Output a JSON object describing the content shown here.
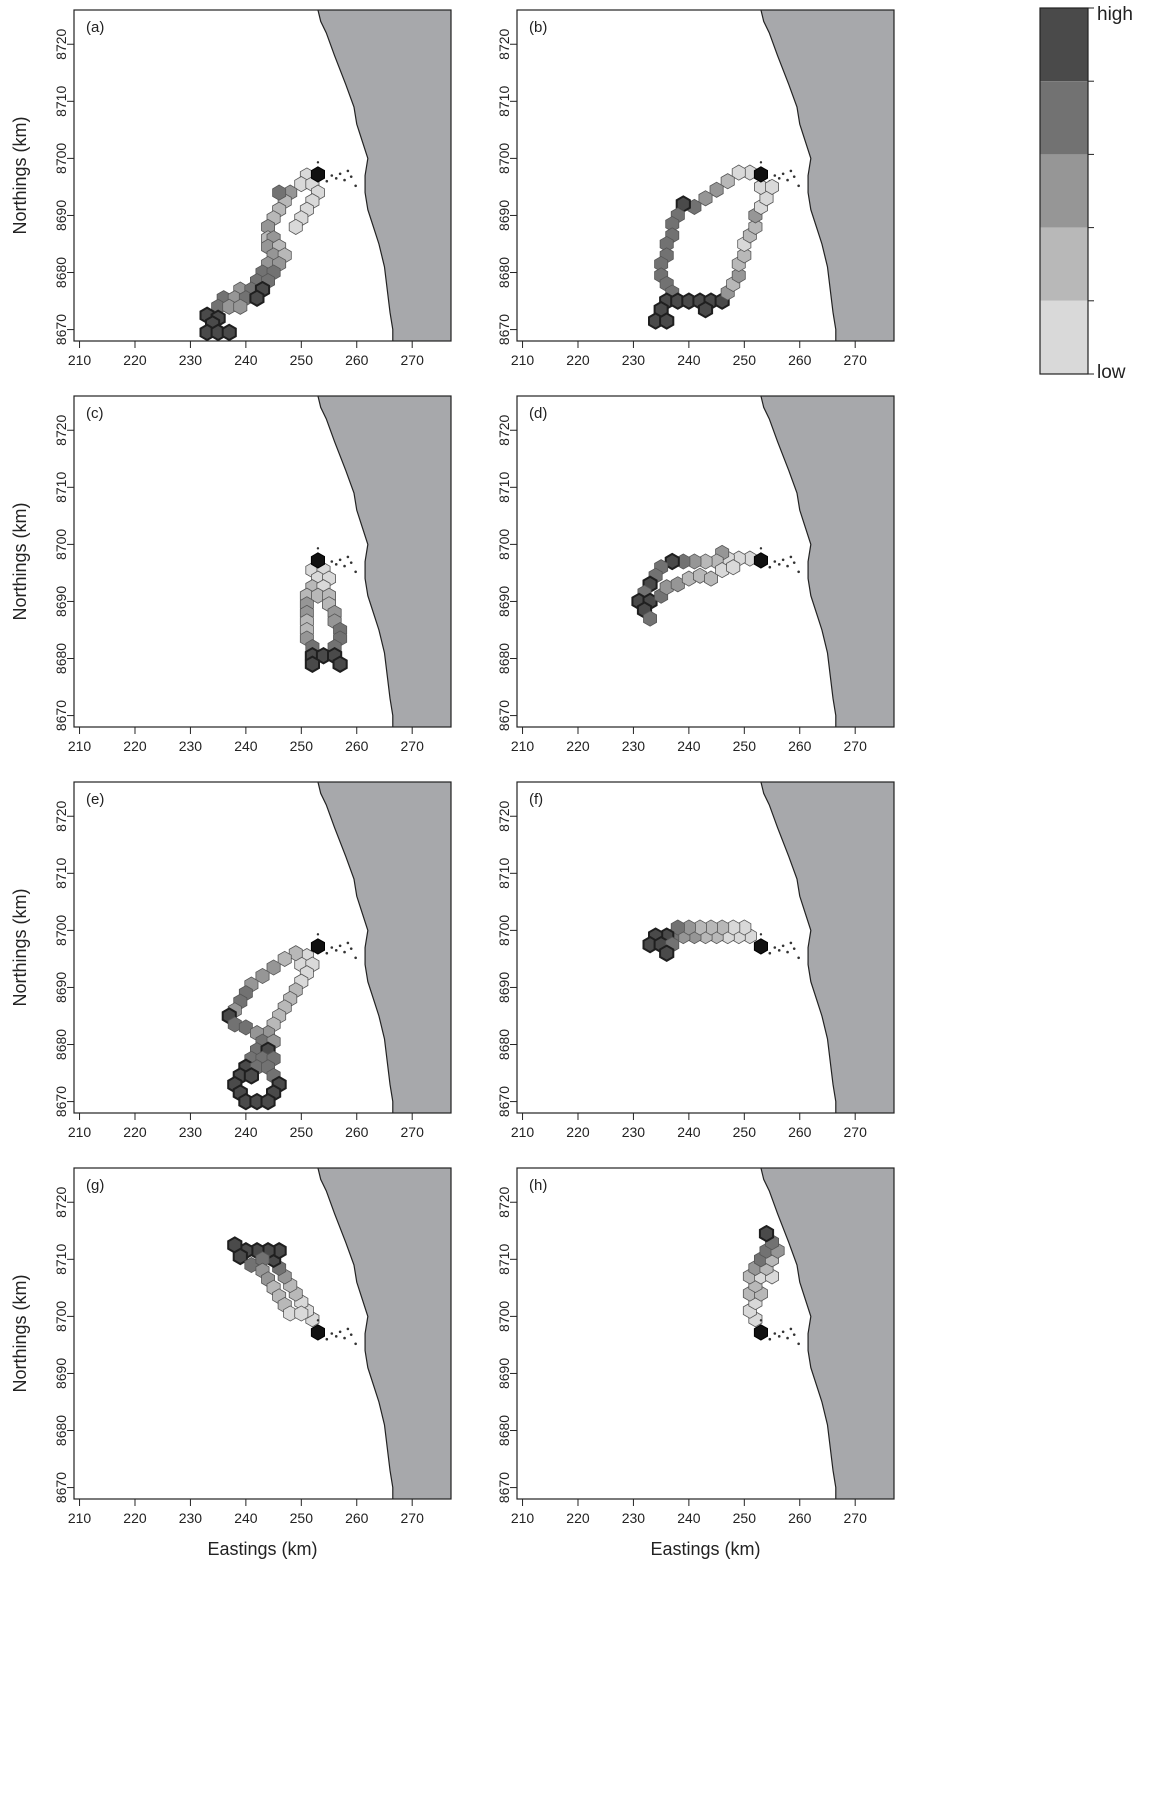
{
  "figure": {
    "xlabel": "Eastings (km)",
    "ylabel": "Northings (km)",
    "xticks": [
      210,
      220,
      230,
      240,
      250,
      260,
      270
    ],
    "yticks": [
      8670,
      8680,
      8690,
      8700,
      8710,
      8720
    ],
    "xlim": [
      209,
      277
    ],
    "ylim": [
      8668,
      8726
    ],
    "land_color": "#a7a8ab",
    "sea_color": "#ffffff",
    "coastline": [
      [
        253,
        8726
      ],
      [
        253.5,
        8724
      ],
      [
        254.5,
        8722
      ],
      [
        256,
        8718
      ],
      [
        258,
        8713
      ],
      [
        259.5,
        8709
      ],
      [
        260,
        8706
      ],
      [
        261,
        8703
      ],
      [
        262,
        8700
      ],
      [
        261.5,
        8697
      ],
      [
        261.5,
        8694
      ],
      [
        262,
        8691
      ],
      [
        263,
        8688
      ],
      [
        264,
        8685
      ],
      [
        265,
        8681
      ],
      [
        265.5,
        8677
      ],
      [
        266,
        8673
      ],
      [
        266.5,
        8670
      ],
      [
        266.5,
        8668
      ]
    ],
    "islands": [
      [
        255.5,
        8697
      ],
      [
        256.3,
        8696.5
      ],
      [
        257,
        8697.3
      ],
      [
        257.8,
        8696.2
      ],
      [
        258.4,
        8697.8
      ],
      [
        259,
        8696.8
      ],
      [
        254.6,
        8696
      ],
      [
        259.8,
        8695.2
      ]
    ]
  },
  "legend": {
    "high_label": "high",
    "low_label": "low",
    "levels": [
      "#d9d9d9",
      "#b8b8b8",
      "#969696",
      "#727272",
      "#4a4a4a"
    ]
  },
  "chart_data": [
    {
      "panel": "(a)",
      "type": "scatter",
      "xlabel": "",
      "ylabel": "Northings (km)",
      "xlim": [
        209,
        277
      ],
      "ylim": [
        8668,
        8726
      ],
      "grid": false,
      "start": [
        253,
        8697.2
      ],
      "cells": [
        [
          251,
          8697,
          0
        ],
        [
          250,
          8695.5,
          0
        ],
        [
          252,
          8695.5,
          0
        ],
        [
          253,
          8694,
          0
        ],
        [
          252,
          8692.5,
          0
        ],
        [
          251,
          8691,
          0
        ],
        [
          250,
          8689.5,
          0
        ],
        [
          249,
          8688,
          0
        ],
        [
          248,
          8694,
          2
        ],
        [
          247,
          8692.5,
          1
        ],
        [
          246,
          8691,
          1
        ],
        [
          246,
          8694,
          3
        ],
        [
          245,
          8689.5,
          1
        ],
        [
          244,
          8688,
          2
        ],
        [
          244,
          8686,
          1
        ],
        [
          245,
          8686,
          2
        ],
        [
          244,
          8684.5,
          2
        ],
        [
          246,
          8684.5,
          1
        ],
        [
          245,
          8683,
          2
        ],
        [
          247,
          8683,
          1
        ],
        [
          244,
          8681.5,
          2
        ],
        [
          246,
          8681.5,
          2
        ],
        [
          243,
          8680,
          3
        ],
        [
          245,
          8680,
          3
        ],
        [
          242,
          8678.5,
          3
        ],
        [
          244,
          8678.5,
          3
        ],
        [
          239,
          8677,
          2
        ],
        [
          241,
          8677,
          3
        ],
        [
          243,
          8677,
          4
        ],
        [
          236,
          8675.5,
          3
        ],
        [
          238,
          8675.5,
          2
        ],
        [
          240,
          8675.5,
          3
        ],
        [
          242,
          8675.5,
          4
        ],
        [
          235,
          8674,
          3
        ],
        [
          237,
          8674,
          2
        ],
        [
          239,
          8674,
          2
        ],
        [
          233,
          8672.5,
          4
        ],
        [
          235,
          8672,
          4
        ],
        [
          234,
          8671,
          4
        ],
        [
          233,
          8669.5,
          4
        ],
        [
          235,
          8669.5,
          4
        ],
        [
          237,
          8669.5,
          4
        ]
      ]
    },
    {
      "panel": "(b)",
      "type": "scatter",
      "xlabel": "",
      "ylabel": "",
      "xlim": [
        209,
        277
      ],
      "ylim": [
        8668,
        8726
      ],
      "grid": false,
      "start": [
        253,
        8697.2
      ],
      "cells": [
        [
          251,
          8697.5,
          0
        ],
        [
          249,
          8697.5,
          0
        ],
        [
          247,
          8696,
          1
        ],
        [
          245,
          8694.5,
          2
        ],
        [
          243,
          8693,
          2
        ],
        [
          241,
          8691.5,
          3
        ],
        [
          239,
          8692,
          4
        ],
        [
          238,
          8690,
          3
        ],
        [
          237,
          8688.5,
          3
        ],
        [
          237,
          8686.5,
          3
        ],
        [
          236,
          8685,
          3
        ],
        [
          236,
          8683,
          3
        ],
        [
          235,
          8681.5,
          3
        ],
        [
          235,
          8679.5,
          3
        ],
        [
          236,
          8678,
          3
        ],
        [
          237,
          8676.5,
          3
        ],
        [
          236,
          8675,
          4
        ],
        [
          235,
          8673.5,
          4
        ],
        [
          234,
          8671.5,
          4
        ],
        [
          236,
          8671.5,
          4
        ],
        [
          238,
          8675,
          4
        ],
        [
          240,
          8675,
          4
        ],
        [
          242,
          8675,
          4
        ],
        [
          244,
          8675,
          4
        ],
        [
          243,
          8673.5,
          4
        ],
        [
          246,
          8675,
          4
        ],
        [
          247,
          8676.5,
          2
        ],
        [
          248,
          8678,
          1
        ],
        [
          249,
          8679.5,
          2
        ],
        [
          249,
          8681.5,
          1
        ],
        [
          250,
          8683,
          1
        ],
        [
          250,
          8685,
          0
        ],
        [
          251,
          8686.5,
          1
        ],
        [
          252,
          8688,
          1
        ],
        [
          252,
          8690,
          2
        ],
        [
          253,
          8691.5,
          0
        ],
        [
          254,
          8693,
          0
        ],
        [
          253,
          8695,
          0
        ],
        [
          255,
          8695,
          0
        ]
      ]
    },
    {
      "panel": "(c)",
      "type": "scatter",
      "xlabel": "",
      "ylabel": "Northings (km)",
      "xlim": [
        209,
        277
      ],
      "ylim": [
        8668,
        8726
      ],
      "grid": false,
      "start": [
        253,
        8697.2
      ],
      "cells": [
        [
          252,
          8695.5,
          0
        ],
        [
          254,
          8695.5,
          0
        ],
        [
          253,
          8694,
          0
        ],
        [
          255,
          8694,
          0
        ],
        [
          252,
          8692.5,
          1
        ],
        [
          254,
          8692.5,
          0
        ],
        [
          251,
          8691,
          1
        ],
        [
          253,
          8691,
          1
        ],
        [
          255,
          8691,
          1
        ],
        [
          251,
          8689.5,
          2
        ],
        [
          255,
          8689.5,
          1
        ],
        [
          251,
          8688,
          2
        ],
        [
          256,
          8688,
          2
        ],
        [
          251,
          8686.5,
          1
        ],
        [
          256,
          8686.5,
          2
        ],
        [
          251,
          8685,
          1
        ],
        [
          257,
          8685,
          3
        ],
        [
          251,
          8683.5,
          2
        ],
        [
          257,
          8683.5,
          3
        ],
        [
          252,
          8682,
          3
        ],
        [
          256,
          8682,
          3
        ],
        [
          252,
          8680.5,
          4
        ],
        [
          254,
          8680.5,
          4
        ],
        [
          256,
          8680.5,
          4
        ],
        [
          252,
          8679,
          4
        ],
        [
          257,
          8679,
          4
        ]
      ]
    },
    {
      "panel": "(d)",
      "type": "scatter",
      "xlabel": "",
      "ylabel": "",
      "xlim": [
        209,
        277
      ],
      "ylim": [
        8668,
        8726
      ],
      "grid": false,
      "start": [
        253,
        8697.2
      ],
      "cells": [
        [
          251,
          8697.5,
          0
        ],
        [
          249,
          8697.5,
          0
        ],
        [
          247,
          8697.5,
          0
        ],
        [
          246,
          8698.5,
          2
        ],
        [
          245,
          8697,
          1
        ],
        [
          243,
          8697,
          1
        ],
        [
          241,
          8697,
          2
        ],
        [
          239,
          8697,
          3
        ],
        [
          237,
          8697,
          4
        ],
        [
          235,
          8696,
          3
        ],
        [
          234,
          8694.5,
          3
        ],
        [
          233,
          8693,
          4
        ],
        [
          232,
          8691.5,
          3
        ],
        [
          231,
          8690,
          4
        ],
        [
          233,
          8690,
          4
        ],
        [
          232,
          8688.5,
          4
        ],
        [
          233,
          8687,
          3
        ],
        [
          235,
          8691,
          3
        ],
        [
          236,
          8692.5,
          2
        ],
        [
          238,
          8693,
          2
        ],
        [
          240,
          8694,
          1
        ],
        [
          242,
          8694.5,
          1
        ],
        [
          244,
          8694,
          1
        ],
        [
          246,
          8695.5,
          0
        ],
        [
          248,
          8696,
          0
        ]
      ]
    },
    {
      "panel": "(e)",
      "type": "scatter",
      "xlabel": "",
      "ylabel": "Northings (km)",
      "xlim": [
        209,
        277
      ],
      "ylim": [
        8668,
        8726
      ],
      "grid": false,
      "start": [
        253,
        8697.2
      ],
      "cells": [
        [
          251,
          8695.5,
          0
        ],
        [
          250,
          8694,
          0
        ],
        [
          252,
          8694,
          0
        ],
        [
          249,
          8696,
          1
        ],
        [
          247,
          8695,
          1
        ],
        [
          245,
          8693.5,
          2
        ],
        [
          243,
          8692,
          2
        ],
        [
          241,
          8690.5,
          2
        ],
        [
          240,
          8689,
          3
        ],
        [
          239,
          8687.5,
          3
        ],
        [
          238,
          8686,
          2
        ],
        [
          237,
          8685,
          4
        ],
        [
          238,
          8683.5,
          3
        ],
        [
          240,
          8683,
          3
        ],
        [
          251,
          8692.5,
          0
        ],
        [
          250,
          8691,
          0
        ],
        [
          249,
          8689.5,
          1
        ],
        [
          248,
          8688,
          1
        ],
        [
          247,
          8686.5,
          1
        ],
        [
          246,
          8685,
          1
        ],
        [
          245,
          8683.5,
          1
        ],
        [
          244,
          8682,
          2
        ],
        [
          242,
          8682,
          2
        ],
        [
          243,
          8680.5,
          3
        ],
        [
          245,
          8680.5,
          2
        ],
        [
          242,
          8679,
          3
        ],
        [
          244,
          8679,
          4
        ],
        [
          241,
          8677.5,
          3
        ],
        [
          243,
          8677.5,
          3
        ],
        [
          245,
          8677.5,
          3
        ],
        [
          240,
          8676,
          4
        ],
        [
          242,
          8676,
          3
        ],
        [
          244,
          8676,
          3
        ],
        [
          239,
          8674.5,
          4
        ],
        [
          241,
          8674.5,
          4
        ],
        [
          245,
          8674.5,
          3
        ],
        [
          238,
          8673,
          4
        ],
        [
          246,
          8673,
          4
        ],
        [
          239,
          8671.5,
          4
        ],
        [
          245,
          8671.5,
          4
        ],
        [
          240,
          8670,
          4
        ],
        [
          242,
          8670,
          4
        ],
        [
          244,
          8670,
          4
        ]
      ]
    },
    {
      "panel": "(f)",
      "type": "scatter",
      "xlabel": "",
      "ylabel": "",
      "xlim": [
        209,
        277
      ],
      "ylim": [
        8668,
        8726
      ],
      "grid": false,
      "start": [
        253,
        8697.2
      ],
      "cells": [
        [
          251,
          8699,
          0
        ],
        [
          249,
          8699,
          0
        ],
        [
          247,
          8699,
          0
        ],
        [
          245,
          8699,
          1
        ],
        [
          243,
          8699,
          1
        ],
        [
          241,
          8699,
          2
        ],
        [
          239,
          8699,
          2
        ],
        [
          237,
          8699,
          3
        ],
        [
          250,
          8700.5,
          0
        ],
        [
          248,
          8700.5,
          0
        ],
        [
          246,
          8700.5,
          1
        ],
        [
          244,
          8700.5,
          1
        ],
        [
          242,
          8700.5,
          1
        ],
        [
          240,
          8700.5,
          2
        ],
        [
          238,
          8700.5,
          3
        ],
        [
          236,
          8699,
          4
        ],
        [
          234,
          8699,
          4
        ],
        [
          233,
          8697.5,
          4
        ],
        [
          235,
          8697.5,
          4
        ],
        [
          237,
          8697.5,
          3
        ],
        [
          236,
          8696,
          4
        ]
      ]
    },
    {
      "panel": "(g)",
      "type": "scatter",
      "xlabel": "Eastings (km)",
      "ylabel": "Northings (km)",
      "xlim": [
        209,
        277
      ],
      "ylim": [
        8668,
        8726
      ],
      "grid": false,
      "start": [
        253,
        8697.2
      ],
      "cells": [
        [
          252,
          8699.5,
          0
        ],
        [
          251,
          8701,
          0
        ],
        [
          250,
          8702.5,
          0
        ],
        [
          249,
          8704,
          1
        ],
        [
          248,
          8705.5,
          1
        ],
        [
          247,
          8707,
          2
        ],
        [
          246,
          8708.5,
          3
        ],
        [
          245,
          8710,
          4
        ],
        [
          246,
          8711.5,
          4
        ],
        [
          244,
          8711.5,
          4
        ],
        [
          242,
          8711.5,
          4
        ],
        [
          240,
          8711.5,
          4
        ],
        [
          238,
          8712.5,
          4
        ],
        [
          239,
          8710.5,
          4
        ],
        [
          241,
          8709,
          3
        ],
        [
          243,
          8710,
          3
        ],
        [
          243,
          8708,
          2
        ],
        [
          244,
          8706.5,
          2
        ],
        [
          245,
          8705,
          1
        ],
        [
          246,
          8703.5,
          1
        ],
        [
          247,
          8702,
          1
        ],
        [
          248,
          8700.5,
          0
        ],
        [
          250,
          8700.5,
          0
        ]
      ]
    },
    {
      "panel": "(h)",
      "type": "scatter",
      "xlabel": "Eastings (km)",
      "ylabel": "",
      "xlim": [
        209,
        277
      ],
      "ylim": [
        8668,
        8726
      ],
      "grid": false,
      "start": [
        253,
        8697.2
      ],
      "cells": [
        [
          252,
          8699.5,
          0
        ],
        [
          251,
          8701,
          0
        ],
        [
          252,
          8702.5,
          0
        ],
        [
          251,
          8704,
          1
        ],
        [
          253,
          8704,
          1
        ],
        [
          252,
          8705.5,
          1
        ],
        [
          251,
          8707,
          1
        ],
        [
          253,
          8707,
          0
        ],
        [
          255,
          8707,
          0
        ],
        [
          252,
          8708.5,
          2
        ],
        [
          254,
          8708.5,
          1
        ],
        [
          253,
          8710,
          3
        ],
        [
          255,
          8710,
          1
        ],
        [
          254,
          8711.5,
          3
        ],
        [
          256,
          8711.5,
          2
        ],
        [
          255,
          8713,
          3
        ],
        [
          254,
          8714.5,
          4
        ]
      ]
    }
  ]
}
